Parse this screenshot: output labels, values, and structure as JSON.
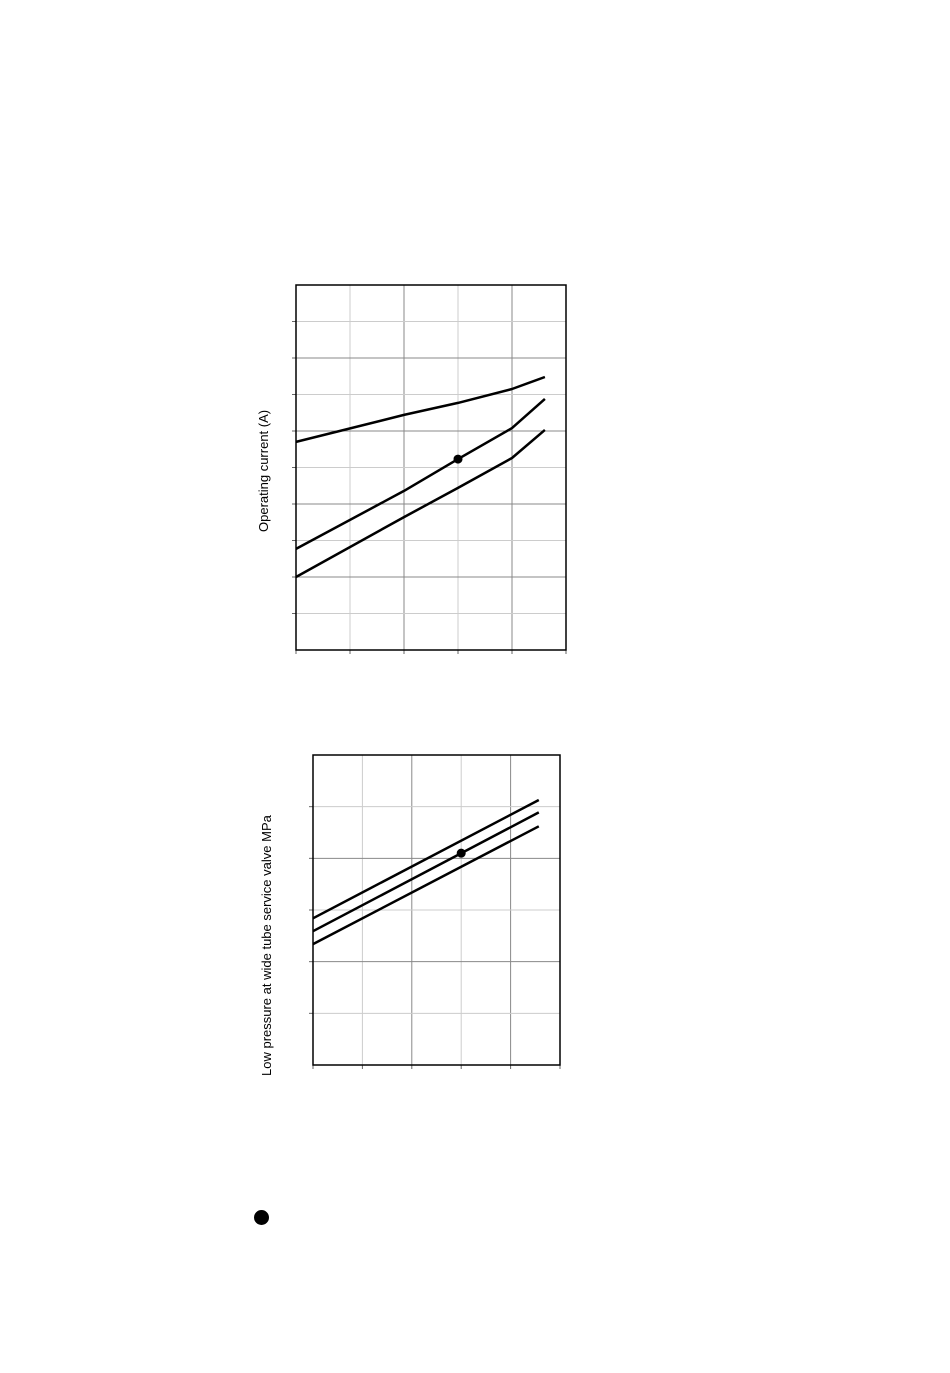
{
  "chart_data": [
    {
      "type": "line",
      "title": "",
      "xlabel": "",
      "ylabel": "Operating current (A)",
      "xlim": [
        0,
        5
      ],
      "ylim": [
        0,
        10
      ],
      "grid": true,
      "series": [
        {
          "x": [
            0,
            2,
            3,
            4,
            4.61
          ],
          "y": [
            5.7,
            6.44,
            6.77,
            7.15,
            7.48
          ]
        },
        {
          "x": [
            0,
            2,
            3,
            4,
            4.61
          ],
          "y": [
            2.77,
            4.36,
            5.23,
            6.08,
            6.88
          ]
        },
        {
          "x": [
            0,
            2,
            3,
            4,
            4.61
          ],
          "y": [
            2.0,
            3.64,
            4.44,
            5.26,
            6.03
          ]
        }
      ],
      "marker_point": {
        "x": 3,
        "y": 5.23
      }
    },
    {
      "type": "line",
      "title": "",
      "xlabel": "",
      "ylabel": "Low pressure at wide tube service valve MPa",
      "xlim": [
        0,
        5
      ],
      "ylim": [
        0,
        6
      ],
      "grid": true,
      "series": [
        {
          "x": [
            0,
            4.57
          ],
          "y": [
            2.84,
            5.13
          ]
        },
        {
          "x": [
            0,
            4.57
          ],
          "y": [
            2.59,
            4.89
          ]
        },
        {
          "x": [
            0,
            4.57
          ],
          "y": [
            2.34,
            4.62
          ]
        }
      ],
      "marker_point": {
        "x": 3,
        "y": 4.1
      }
    }
  ]
}
